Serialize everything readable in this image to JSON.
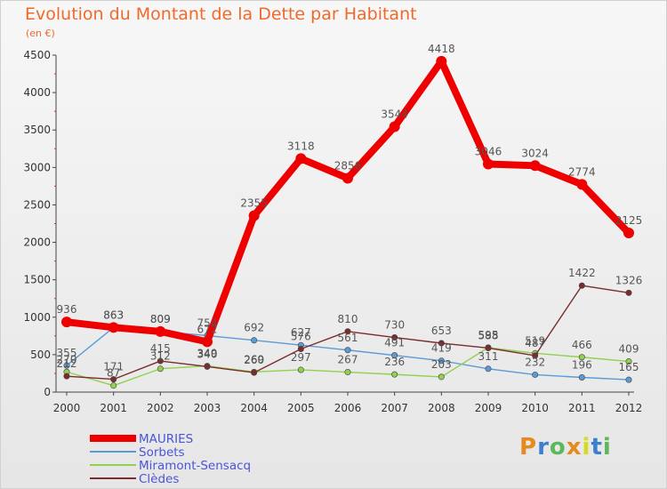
{
  "title": "Evolution du Montant de la Dette par Habitant",
  "unit": "(en €)",
  "brand": "Proxiti",
  "chart_data": {
    "type": "line",
    "title": "Evolution du Montant de la Dette par Habitant",
    "ylabel": "(en €)",
    "x": [
      "2000",
      "2001",
      "2002",
      "2003",
      "2004",
      "2005",
      "2006",
      "2007",
      "2008",
      "2009",
      "2010",
      "2011",
      "2012"
    ],
    "ylim": [
      0,
      4500
    ],
    "yticks": [
      0,
      500,
      1000,
      1500,
      2000,
      2500,
      3000,
      3500,
      4000,
      4500
    ],
    "grid": false,
    "legend_position": "bottom-left",
    "series": [
      {
        "name": "MAURIES",
        "color": "#ee0000",
        "values": [
          936,
          863,
          809,
          672,
          2355,
          3118,
          2856,
          3544,
          4418,
          3046,
          3024,
          2774,
          2125
        ]
      },
      {
        "name": "Sorbets",
        "color": "#5b9bd5",
        "values": [
          355,
          863,
          809,
          754,
          692,
          627,
          561,
          491,
          419,
          311,
          232,
          196,
          165
        ]
      },
      {
        "name": "Miramont-Sensacq",
        "color": "#92d050",
        "values": [
          270,
          87,
          312,
          349,
          269,
          297,
          267,
          236,
          203,
          595,
          519,
          466,
          409
        ]
      },
      {
        "name": "Clèdes",
        "color": "#7b2c2c",
        "values": [
          212,
          171,
          415,
          340,
          260,
          576,
          810,
          730,
          653,
          588,
          487,
          1422,
          1326
        ]
      }
    ]
  },
  "logo_colors": [
    "#e58a1e",
    "#3b7fd0",
    "#5cb85c",
    "#e58a1e",
    "#d9d91e",
    "#3b7fd0",
    "#5cb85c"
  ]
}
